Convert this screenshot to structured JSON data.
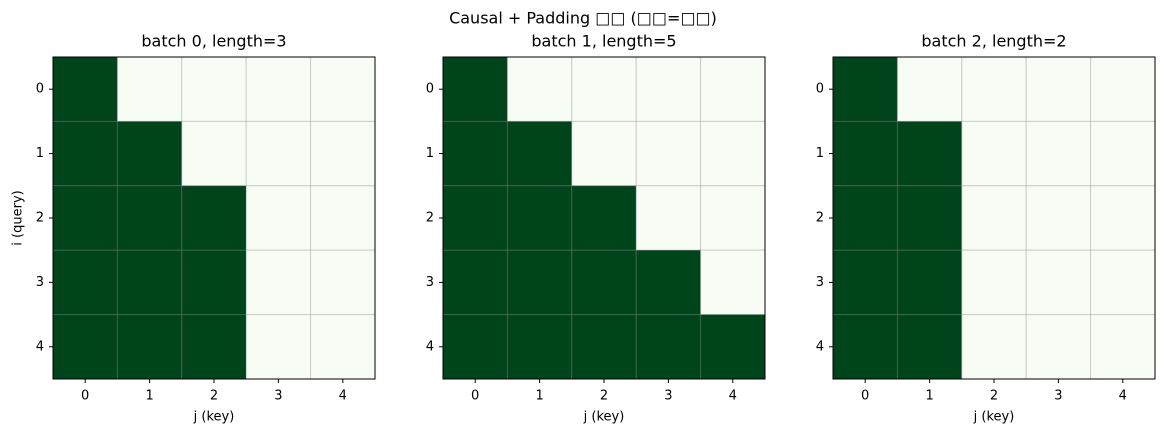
{
  "title": "Causal + Padding □□ (□□=□□)",
  "chart_data": [
    {
      "type": "heatmap",
      "title": "batch 0, length=3",
      "x_label": "j (key)",
      "y_label": "i (query)",
      "xlim": [
        -0.5,
        4.5
      ],
      "ylim": [
        4.5,
        -0.5
      ],
      "xticks": [
        0,
        1,
        2,
        3,
        4
      ],
      "yticks": [
        0,
        1,
        2,
        3,
        4
      ],
      "vlim": [
        0,
        1
      ],
      "colors": [
        "#f7fcf5",
        "#00441b"
      ],
      "grid": true,
      "values": [
        [
          1,
          0,
          0,
          0,
          0
        ],
        [
          1,
          1,
          0,
          0,
          0
        ],
        [
          1,
          1,
          1,
          0,
          0
        ],
        [
          1,
          1,
          1,
          0,
          0
        ],
        [
          1,
          1,
          1,
          0,
          0
        ]
      ]
    },
    {
      "type": "heatmap",
      "title": "batch 1, length=5",
      "x_label": "j (key)",
      "xlim": [
        -0.5,
        4.5
      ],
      "ylim": [
        4.5,
        -0.5
      ],
      "xticks": [
        0,
        1,
        2,
        3,
        4
      ],
      "yticks": [
        0,
        1,
        2,
        3,
        4
      ],
      "vlim": [
        0,
        1
      ],
      "colors": [
        "#f7fcf5",
        "#00441b"
      ],
      "grid": true,
      "values": [
        [
          1,
          0,
          0,
          0,
          0
        ],
        [
          1,
          1,
          0,
          0,
          0
        ],
        [
          1,
          1,
          1,
          0,
          0
        ],
        [
          1,
          1,
          1,
          1,
          0
        ],
        [
          1,
          1,
          1,
          1,
          1
        ]
      ]
    },
    {
      "type": "heatmap",
      "title": "batch 2, length=2",
      "x_label": "j (key)",
      "xlim": [
        -0.5,
        4.5
      ],
      "ylim": [
        4.5,
        -0.5
      ],
      "xticks": [
        0,
        1,
        2,
        3,
        4
      ],
      "yticks": [
        0,
        1,
        2,
        3,
        4
      ],
      "vlim": [
        0,
        1
      ],
      "colors": [
        "#f7fcf5",
        "#00441b"
      ],
      "grid": true,
      "values": [
        [
          1,
          0,
          0,
          0,
          0
        ],
        [
          1,
          1,
          0,
          0,
          0
        ],
        [
          1,
          1,
          0,
          0,
          0
        ],
        [
          1,
          1,
          0,
          0,
          0
        ],
        [
          1,
          1,
          0,
          0,
          0
        ]
      ]
    }
  ]
}
